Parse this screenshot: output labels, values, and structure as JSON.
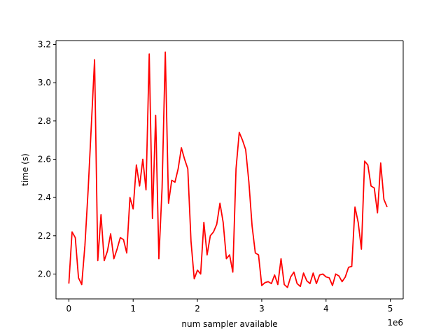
{
  "chart_data": {
    "type": "line",
    "xlabel": "num sampler available",
    "ylabel": "time (s)",
    "x_offset_label": "1e6",
    "xlim": [
      -200000,
      5200000
    ],
    "ylim": [
      1.87,
      3.22
    ],
    "x_ticks": [
      0,
      1000000,
      2000000,
      3000000,
      4000000,
      5000000
    ],
    "x_tick_labels": [
      "0",
      "1",
      "2",
      "3",
      "4",
      "5"
    ],
    "y_ticks": [
      2.0,
      2.2,
      2.4,
      2.6,
      2.8,
      3.0,
      3.2
    ],
    "y_tick_labels": [
      "2.0",
      "2.2",
      "2.4",
      "2.6",
      "2.8",
      "3.0",
      "3.2"
    ],
    "grid": false,
    "series": [
      {
        "color": "#ff0000",
        "x": [
          0,
          50000,
          100000,
          150000,
          200000,
          250000,
          300000,
          350000,
          400000,
          450000,
          500000,
          550000,
          600000,
          650000,
          700000,
          750000,
          800000,
          850000,
          900000,
          950000,
          1000000,
          1050000,
          1100000,
          1150000,
          1200000,
          1250000,
          1300000,
          1350000,
          1400000,
          1450000,
          1500000,
          1550000,
          1600000,
          1650000,
          1700000,
          1750000,
          1800000,
          1850000,
          1900000,
          1950000,
          2000000,
          2050000,
          2100000,
          2150000,
          2200000,
          2250000,
          2300000,
          2350000,
          2400000,
          2450000,
          2500000,
          2550000,
          2600000,
          2650000,
          2700000,
          2750000,
          2800000,
          2850000,
          2900000,
          2950000,
          3000000,
          3050000,
          3100000,
          3150000,
          3200000,
          3250000,
          3300000,
          3350000,
          3400000,
          3450000,
          3500000,
          3550000,
          3600000,
          3650000,
          3700000,
          3750000,
          3800000,
          3850000,
          3900000,
          3950000,
          4000000,
          4050000,
          4100000,
          4150000,
          4200000,
          4250000,
          4300000,
          4350000,
          4400000,
          4450000,
          4500000,
          4550000,
          4600000,
          4650000,
          4700000,
          4750000,
          4800000,
          4850000,
          4900000,
          4950000
        ],
        "y": [
          1.95,
          2.22,
          2.19,
          1.98,
          1.945,
          2.15,
          2.44,
          2.78,
          3.12,
          2.07,
          2.31,
          2.07,
          2.12,
          2.21,
          2.08,
          2.13,
          2.19,
          2.18,
          2.11,
          2.4,
          2.34,
          2.57,
          2.46,
          2.6,
          2.44,
          3.15,
          2.29,
          2.83,
          2.08,
          2.45,
          3.16,
          2.37,
          2.49,
          2.48,
          2.55,
          2.66,
          2.6,
          2.55,
          2.17,
          1.975,
          2.02,
          2.0,
          2.27,
          2.1,
          2.2,
          2.22,
          2.26,
          2.37,
          2.27,
          2.08,
          2.1,
          2.01,
          2.55,
          2.74,
          2.7,
          2.65,
          2.48,
          2.25,
          2.11,
          2.1,
          1.94,
          1.955,
          1.96,
          1.95,
          1.995,
          1.945,
          2.08,
          1.945,
          1.93,
          1.985,
          2.01,
          1.95,
          1.935,
          2.005,
          1.965,
          1.95,
          2.005,
          1.95,
          1.995,
          2.0,
          1.985,
          1.98,
          1.94,
          2.0,
          1.99,
          1.96,
          1.985,
          2.035,
          2.04,
          2.35,
          2.27,
          2.13,
          2.59,
          2.57,
          2.46,
          2.45,
          2.32,
          2.58,
          2.39,
          2.35
        ]
      }
    ]
  }
}
